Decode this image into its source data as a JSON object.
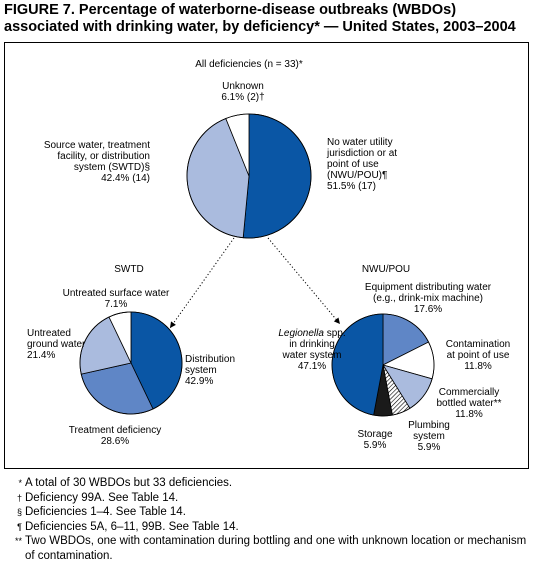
{
  "figure": {
    "title_line1": "FIGURE 7. Percentage of waterborne-disease outbreaks (WBDOs)",
    "title_line2": "associated with drinking water, by deficiency* — United States, 2003–2004"
  },
  "colors": {
    "dark_blue": "#0a56a5",
    "medium_blue": "#5f86c6",
    "light_blue": "#aabbde",
    "white": "#ffffff",
    "black": "#1a1a1a",
    "outline": "#000000"
  },
  "chart_data": [
    {
      "type": "pie",
      "title": "All deficiencies (n = 33)*",
      "slices": [
        {
          "label_lines": [
            "No water utility",
            "jurisdiction or at",
            "point of use",
            "(NWU/POU)¶",
            "51.5% (17)"
          ],
          "value": 51.5,
          "color": "dark_blue"
        },
        {
          "label_lines": [
            "Source water, treatment",
            "facility, or distribution",
            "system (SWTD)§",
            "42.4% (14)"
          ],
          "value": 42.4,
          "color": "light_blue"
        },
        {
          "label_lines": [
            "Unknown",
            "6.1% (2)†"
          ],
          "value": 6.1,
          "color": "white"
        }
      ]
    },
    {
      "type": "pie",
      "title": "SWTD",
      "slices": [
        {
          "label_lines": [
            "Distribution",
            "system",
            "42.9%"
          ],
          "value": 42.9,
          "color": "dark_blue"
        },
        {
          "label_lines": [
            "Treatment deficiency",
            "28.6%"
          ],
          "value": 28.6,
          "color": "medium_blue"
        },
        {
          "label_lines": [
            "Untreated",
            "ground water",
            "21.4%"
          ],
          "value": 21.4,
          "color": "light_blue"
        },
        {
          "label_lines": [
            "Untreated surface water",
            "7.1%"
          ],
          "value": 7.1,
          "color": "white"
        }
      ]
    },
    {
      "type": "pie",
      "title": "NWU/POU",
      "slices": [
        {
          "label_lines": [
            "Equipment distributing water",
            "(e.g., drink-mix machine)",
            "17.6%"
          ],
          "value": 17.6,
          "color": "medium_blue"
        },
        {
          "label_lines": [
            "Contamination",
            "at point of use",
            "11.8%"
          ],
          "value": 11.8,
          "color": "white"
        },
        {
          "label_lines": [
            "Commercially",
            "bottled water**",
            "11.8%"
          ],
          "value": 11.8,
          "color": "light_blue"
        },
        {
          "label_lines": [
            "Plumbing",
            "system",
            "5.9%"
          ],
          "value": 5.9,
          "color": "white",
          "pattern": "stripes"
        },
        {
          "label_lines": [
            "Storage",
            "5.9%"
          ],
          "value": 5.9,
          "color": "black"
        },
        {
          "label_lines": [
            "Legionella spp.",
            "in drinking",
            "water system",
            "47.1%"
          ],
          "value": 47.1,
          "color": "dark_blue",
          "italic_word": "Legionella"
        }
      ]
    }
  ],
  "footnotes": [
    {
      "mark": "*",
      "text": "A total of 30 WBDOs but 33 deficiencies."
    },
    {
      "mark": "†",
      "text": "Deficiency 99A. See Table 14."
    },
    {
      "mark": "§",
      "text": "Deficiencies 1–4. See Table 14."
    },
    {
      "mark": "¶",
      "text": "Deficiencies 5A, 6–11, 99B.  See Table 14."
    },
    {
      "mark": "**",
      "text": "Two WBDOs, one with contamination during bottling and one with unknown location or mechanism of contamination."
    }
  ]
}
